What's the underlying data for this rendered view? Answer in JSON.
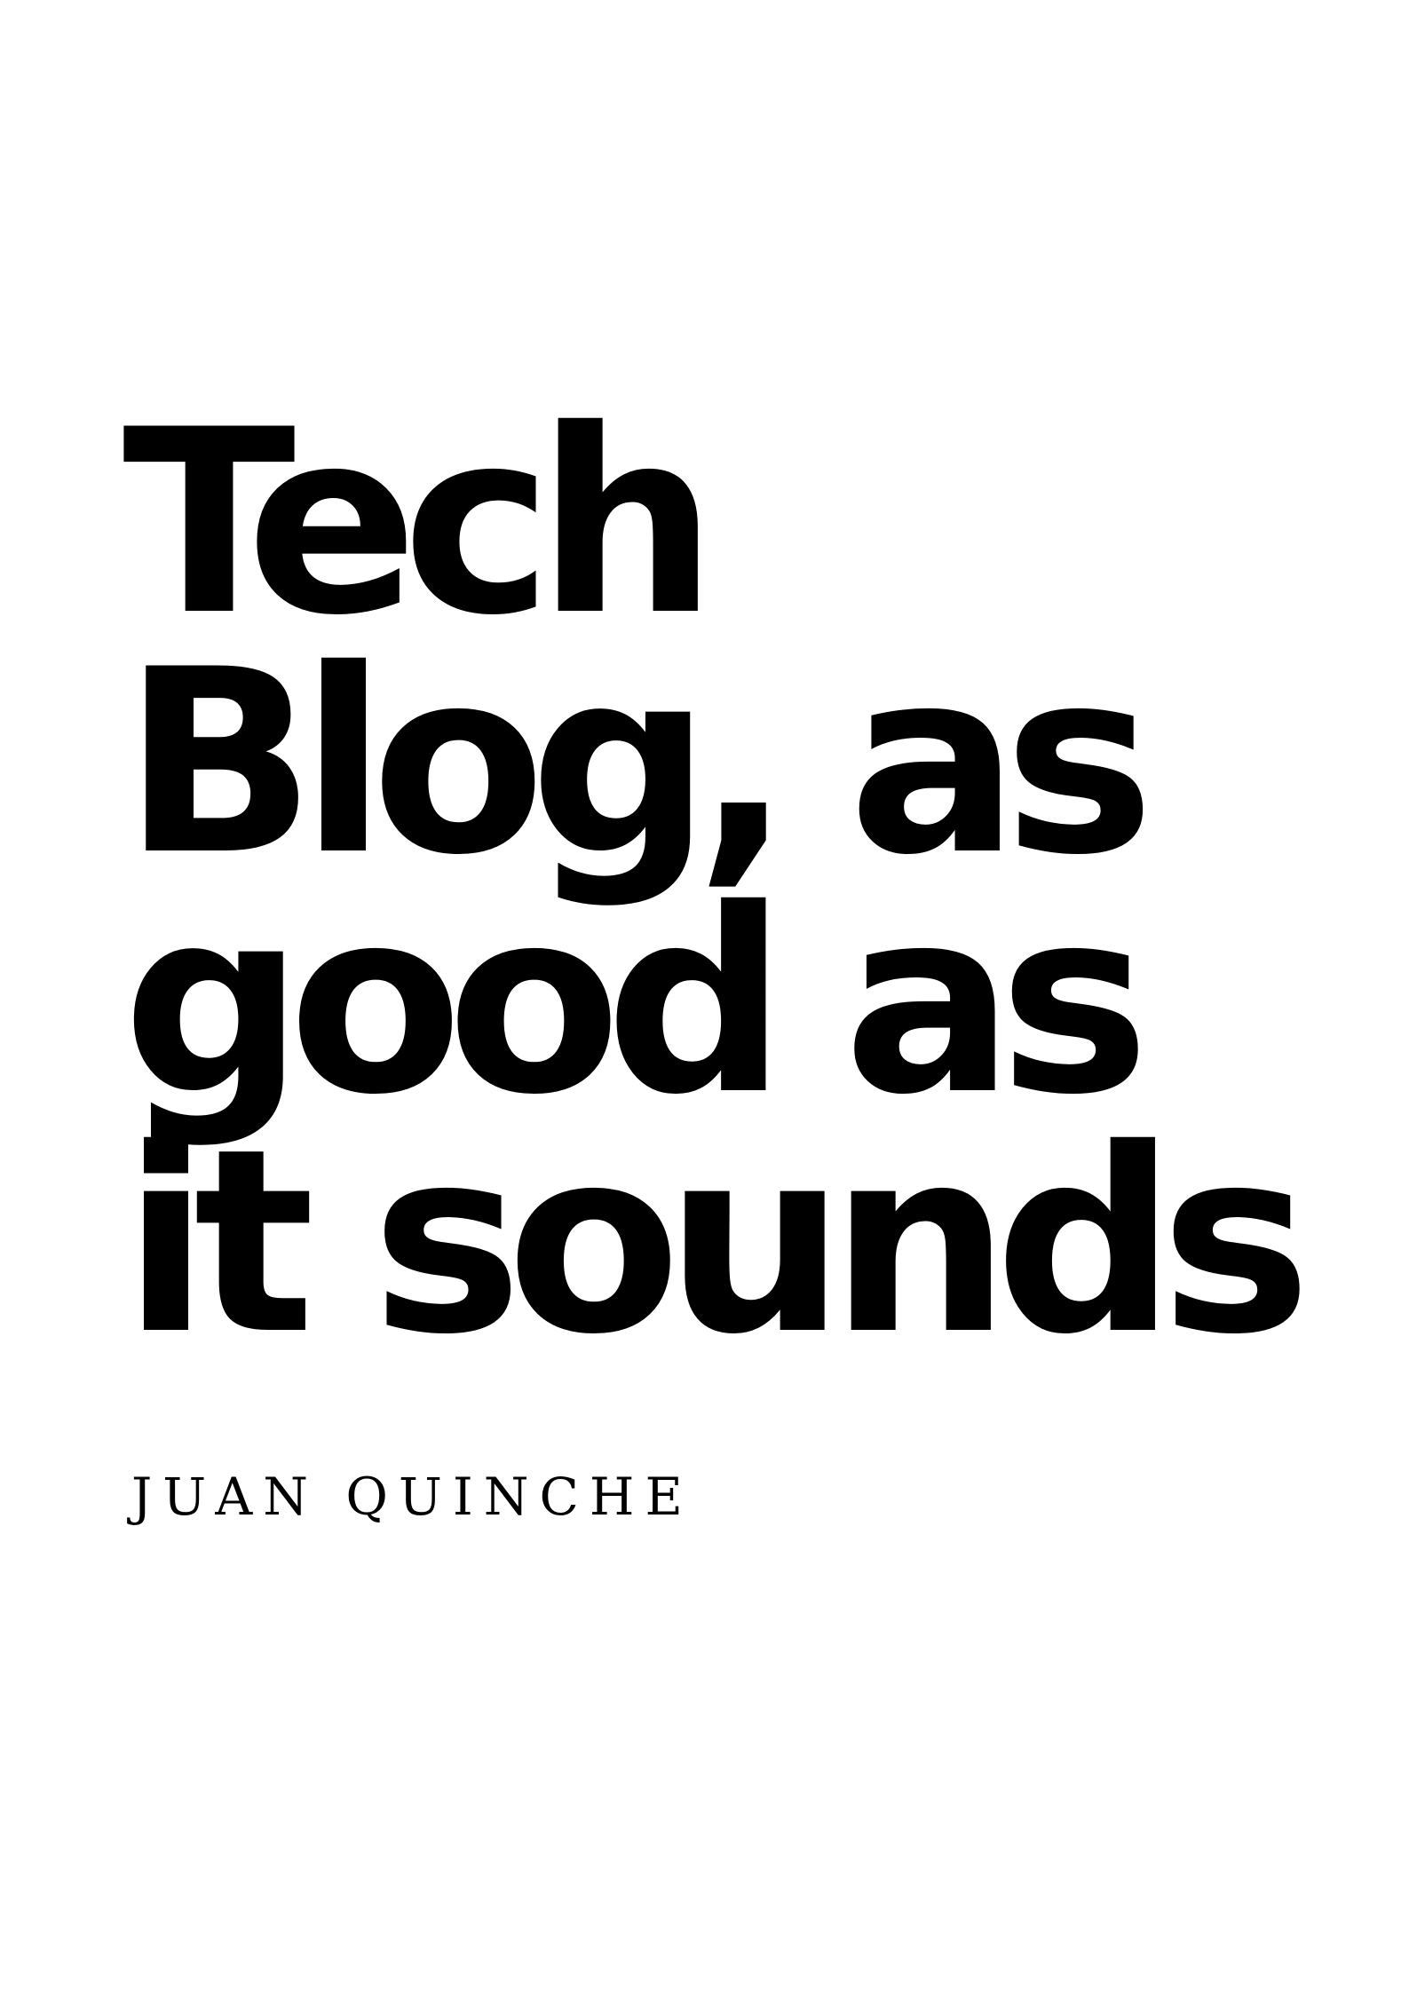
{
  "cover": {
    "title_lines": [
      "Tech",
      "Blog, as",
      "good as",
      "it sounds"
    ],
    "author": "JUAN QUINCHE"
  },
  "colors": {
    "background": "#ffffff",
    "text": "#000000"
  }
}
